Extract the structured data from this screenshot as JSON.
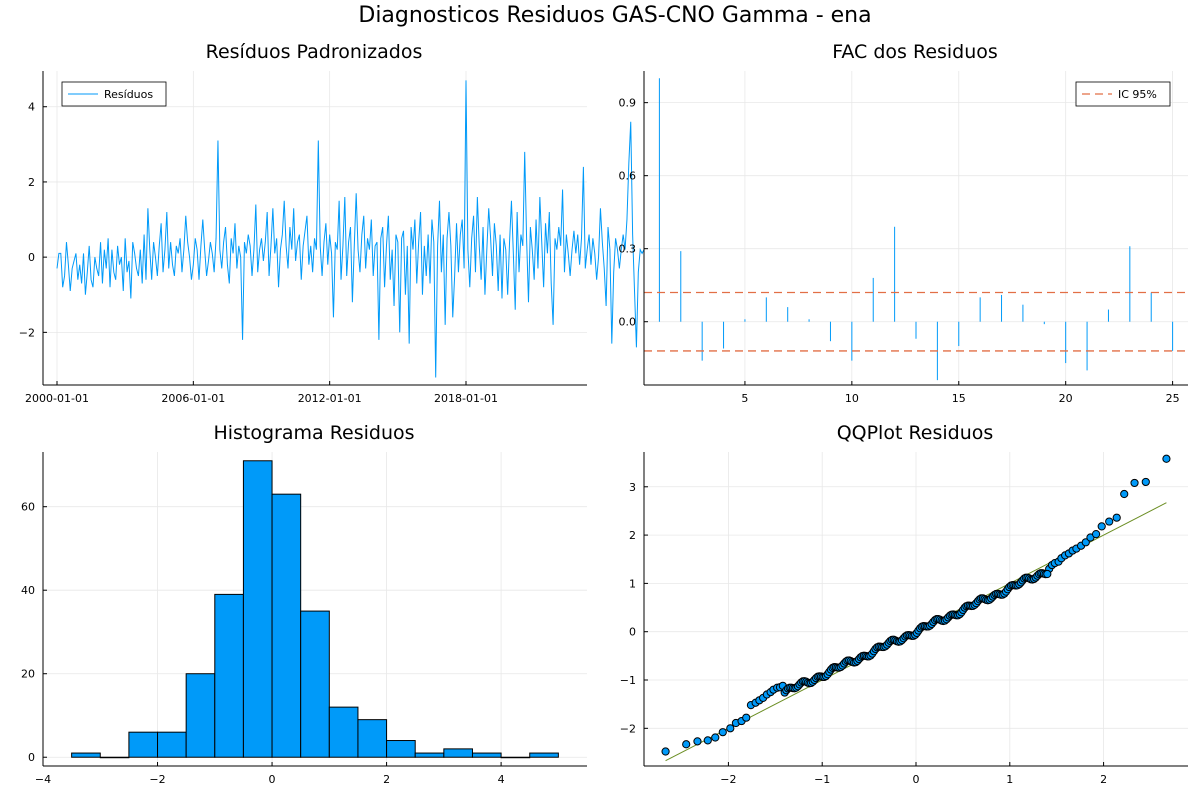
{
  "figure": {
    "title": "Diagnosticos Residuos  GAS-CNO Gamma - ena"
  },
  "colors": {
    "blue": "#009af9",
    "red": "#e26f46",
    "green": "#6b8e23",
    "grid": "#e8e8e8",
    "axis": "#000000"
  },
  "chart_data": [
    {
      "type": "line",
      "title": "Resíduos Padronizados",
      "legend": {
        "entries": [
          "Resíduos"
        ],
        "position": "top-left"
      },
      "x_ticks": [
        "2000-01-01",
        "2006-01-01",
        "2012-01-01",
        "2018-01-01"
      ],
      "y_ticks": [
        -2,
        0,
        2,
        4
      ],
      "ylim": [
        -3.4,
        4.95
      ],
      "x_start": "2000-01",
      "frequency": "monthly",
      "y": [
        -0.3,
        0.1,
        0.1,
        -0.8,
        -0.5,
        0.4,
        -0.2,
        -0.9,
        -0.3,
        -0.1,
        0.1,
        -0.6,
        -0.2,
        -0.7,
        0.1,
        -1.0,
        -0.4,
        0.3,
        -0.6,
        -0.8,
        0.0,
        -0.3,
        -0.5,
        0.4,
        -0.7,
        0.2,
        -0.3,
        0.5,
        -0.8,
        0.2,
        -0.4,
        -0.6,
        0.3,
        -0.2,
        0.0,
        -0.9,
        0.5,
        -0.4,
        -0.1,
        -1.1,
        0.4,
        0.1,
        -0.3,
        -0.5,
        0.2,
        -0.7,
        0.6,
        -0.6,
        1.3,
        0.2,
        -0.6,
        0.4,
        0.0,
        -0.5,
        0.3,
        0.9,
        -0.4,
        0.2,
        1.2,
        -0.3,
        0.4,
        -0.2,
        -0.5,
        0.3,
        0.1,
        0.5,
        -0.4,
        0.2,
        1.1,
        0.4,
        0.0,
        -0.6,
        -0.2,
        0.5,
        0.2,
        -0.6,
        0.3,
        1.0,
        0.2,
        -0.5,
        -0.1,
        0.4,
        0.1,
        -0.4,
        0.5,
        3.1,
        0.2,
        -0.3,
        0.4,
        0.8,
        -0.2,
        -0.7,
        0.5,
        0.1,
        0.9,
        -0.3,
        0.3,
        0.0,
        -2.2,
        0.4,
        0.1,
        0.6,
        0.3,
        -0.5,
        0.2,
        1.4,
        -0.4,
        0.2,
        0.5,
        -0.1,
        0.4,
        1.2,
        -0.5,
        0.3,
        1.3,
        0.1,
        0.5,
        -0.8,
        0.2,
        0.6,
        1.5,
        0.3,
        -0.3,
        0.8,
        0.2,
        1.3,
        -0.1,
        0.4,
        0.6,
        -0.6,
        0.3,
        0.7,
        1.1,
        -0.2,
        0.3,
        -0.4,
        0.5,
        0.2,
        3.1,
        0.3,
        -0.5,
        0.4,
        0.9,
        -0.2,
        0.6,
        0.1,
        -1.6,
        0.4,
        0.2,
        1.5,
        -0.6,
        0.3,
        1.6,
        -0.5,
        0.4,
        0.8,
        -1.2,
        0.3,
        1.7,
        0.2,
        -0.4,
        0.6,
        1.1,
        -0.3,
        0.5,
        0.2,
        1.0,
        -0.5,
        0.3,
        0.4,
        -2.2,
        0.5,
        0.8,
        -0.8,
        0.3,
        1.1,
        -0.6,
        0.2,
        -1.3,
        0.6,
        0.4,
        -2.0,
        0.5,
        0.7,
        -1.0,
        0.3,
        -2.3,
        0.8,
        0.2,
        1.0,
        -0.7,
        0.4,
        1.2,
        -1.0,
        0.3,
        -0.5,
        0.6,
        -0.7,
        1.0,
        0.4,
        -3.2,
        0.3,
        1.5,
        -0.4,
        0.6,
        -1.8,
        0.5,
        1.2,
        0.3,
        -1.6,
        -0.5,
        0.9,
        -0.4,
        0.6,
        1.0,
        -0.3,
        4.7,
        0.2,
        -0.8,
        0.5,
        1.1,
        -0.4,
        1.6,
        0.3,
        -0.6,
        0.8,
        -1.0,
        0.2,
        1.3,
        0.5,
        -0.5,
        0.9,
        0.3,
        -0.9,
        0.6,
        -1.1,
        0.5,
        0.2,
        -1.0,
        0.4,
        1.5,
        0.1,
        -1.4,
        1.2,
        -0.4,
        0.6,
        0.3,
        2.8,
        0.5,
        -1.2,
        0.8,
        0.2,
        -0.6,
        1.0,
        -0.3,
        1.6,
        0.4,
        -0.8,
        0.9,
        0.1,
        1.2,
        -0.7,
        -1.8,
        0.5,
        0.2,
        0.8,
        0.3,
        1.8,
        -0.4,
        0.6,
        0.1,
        -0.5,
        0.2,
        0.7,
        0.1,
        0.6,
        -0.2,
        0.5,
        2.4,
        -0.3,
        0.2,
        0.6,
        -0.2,
        0.5,
        0.1,
        -0.6,
        0.0,
        1.3,
        0.4,
        -0.3,
        -1.3,
        0.8,
        0.2,
        -2.3,
        -0.4,
        0.5,
        0.2,
        -0.3,
        0.2,
        0.6,
        0.2,
        1.0,
        2.5,
        3.6,
        0.6,
        -0.9,
        -2.4,
        -0.4,
        0.2,
        0.1,
        0.2
      ]
    },
    {
      "type": "bar",
      "title": "FAC dos Residuos",
      "legend": {
        "entries": [
          "IC 95%"
        ],
        "position": "top-right"
      },
      "x": [
        1,
        2,
        3,
        4,
        5,
        6,
        7,
        8,
        9,
        10,
        11,
        12,
        13,
        14,
        15,
        16,
        17,
        18,
        19,
        20,
        21,
        22,
        23,
        24,
        25
      ],
      "values": [
        1.0,
        0.29,
        -0.16,
        -0.11,
        0.01,
        0.1,
        0.06,
        0.01,
        -0.08,
        -0.16,
        0.18,
        0.39,
        -0.07,
        -0.24,
        -0.1,
        0.1,
        0.11,
        0.07,
        -0.01,
        -0.17,
        -0.2,
        0.05,
        0.31,
        0.12,
        -0.12
      ],
      "confidence_band": [
        0.12,
        -0.12
      ],
      "x_ticks": [
        5,
        10,
        15,
        20,
        25
      ],
      "y_ticks": [
        "0.0",
        "0.3",
        "0.6",
        "0.9"
      ],
      "xlim": [
        0.28,
        25.72
      ],
      "ylim": [
        -0.26,
        1.03
      ]
    },
    {
      "type": "bar",
      "title": "Histograma Residuos",
      "bin_edges": [
        -3.5,
        -3,
        -2.5,
        -2,
        -1.5,
        -1,
        -0.5,
        0,
        0.5,
        1,
        1.5,
        2,
        2.5,
        3,
        3.5,
        4,
        4.5,
        5
      ],
      "values": [
        1,
        0,
        6,
        6,
        20,
        39,
        71,
        63,
        35,
        12,
        9,
        4,
        1,
        2,
        1,
        0,
        1
      ],
      "x_ticks": [
        -4,
        -2,
        0,
        2,
        4
      ],
      "y_ticks": [
        0,
        20,
        40,
        60
      ],
      "xlim": [
        -4.0,
        5.5
      ],
      "ylim": [
        -2.1,
        73.1
      ]
    },
    {
      "type": "scatter",
      "title": "QQPlot Residuos",
      "x_ticks": [
        -2,
        -1,
        0,
        1,
        2
      ],
      "y_ticks": [
        -2,
        -1,
        0,
        1,
        2,
        3
      ],
      "xlim": [
        -2.9,
        2.9
      ],
      "ylim": [
        -2.78,
        3.72
      ],
      "reference_line": {
        "x": [
          -2.67,
          2.67
        ],
        "y": [
          -2.67,
          2.67
        ]
      },
      "tail_points": {
        "x": [
          -2.67,
          -2.45,
          -2.33,
          -2.22,
          -2.14,
          -2.06,
          -1.98,
          -1.92,
          -1.86,
          -1.81,
          -1.76,
          -1.71,
          -1.67,
          -1.63,
          -1.59,
          -1.55,
          -1.52,
          -1.48,
          -1.45,
          -1.42,
          1.42,
          1.45,
          1.48,
          1.52,
          1.55,
          1.59,
          1.63,
          1.67,
          1.71,
          1.76,
          1.81,
          1.86,
          1.92,
          1.98,
          2.06,
          2.14,
          2.22,
          2.33,
          2.45,
          2.67
        ],
        "y": [
          -2.48,
          -2.33,
          -2.27,
          -2.25,
          -2.19,
          -2.08,
          -2.0,
          -1.89,
          -1.85,
          -1.78,
          -1.52,
          -1.47,
          -1.42,
          -1.37,
          -1.3,
          -1.25,
          -1.2,
          -1.16,
          -1.15,
          -1.12,
          1.3,
          1.38,
          1.42,
          1.45,
          1.52,
          1.58,
          1.62,
          1.68,
          1.72,
          1.78,
          1.85,
          1.95,
          2.02,
          2.18,
          2.28,
          2.36,
          2.85,
          3.08,
          3.1,
          3.58
        ]
      },
      "body": {
        "x_range": [
          -1.4,
          1.4
        ],
        "slope": 0.9,
        "count": 160
      }
    }
  ]
}
